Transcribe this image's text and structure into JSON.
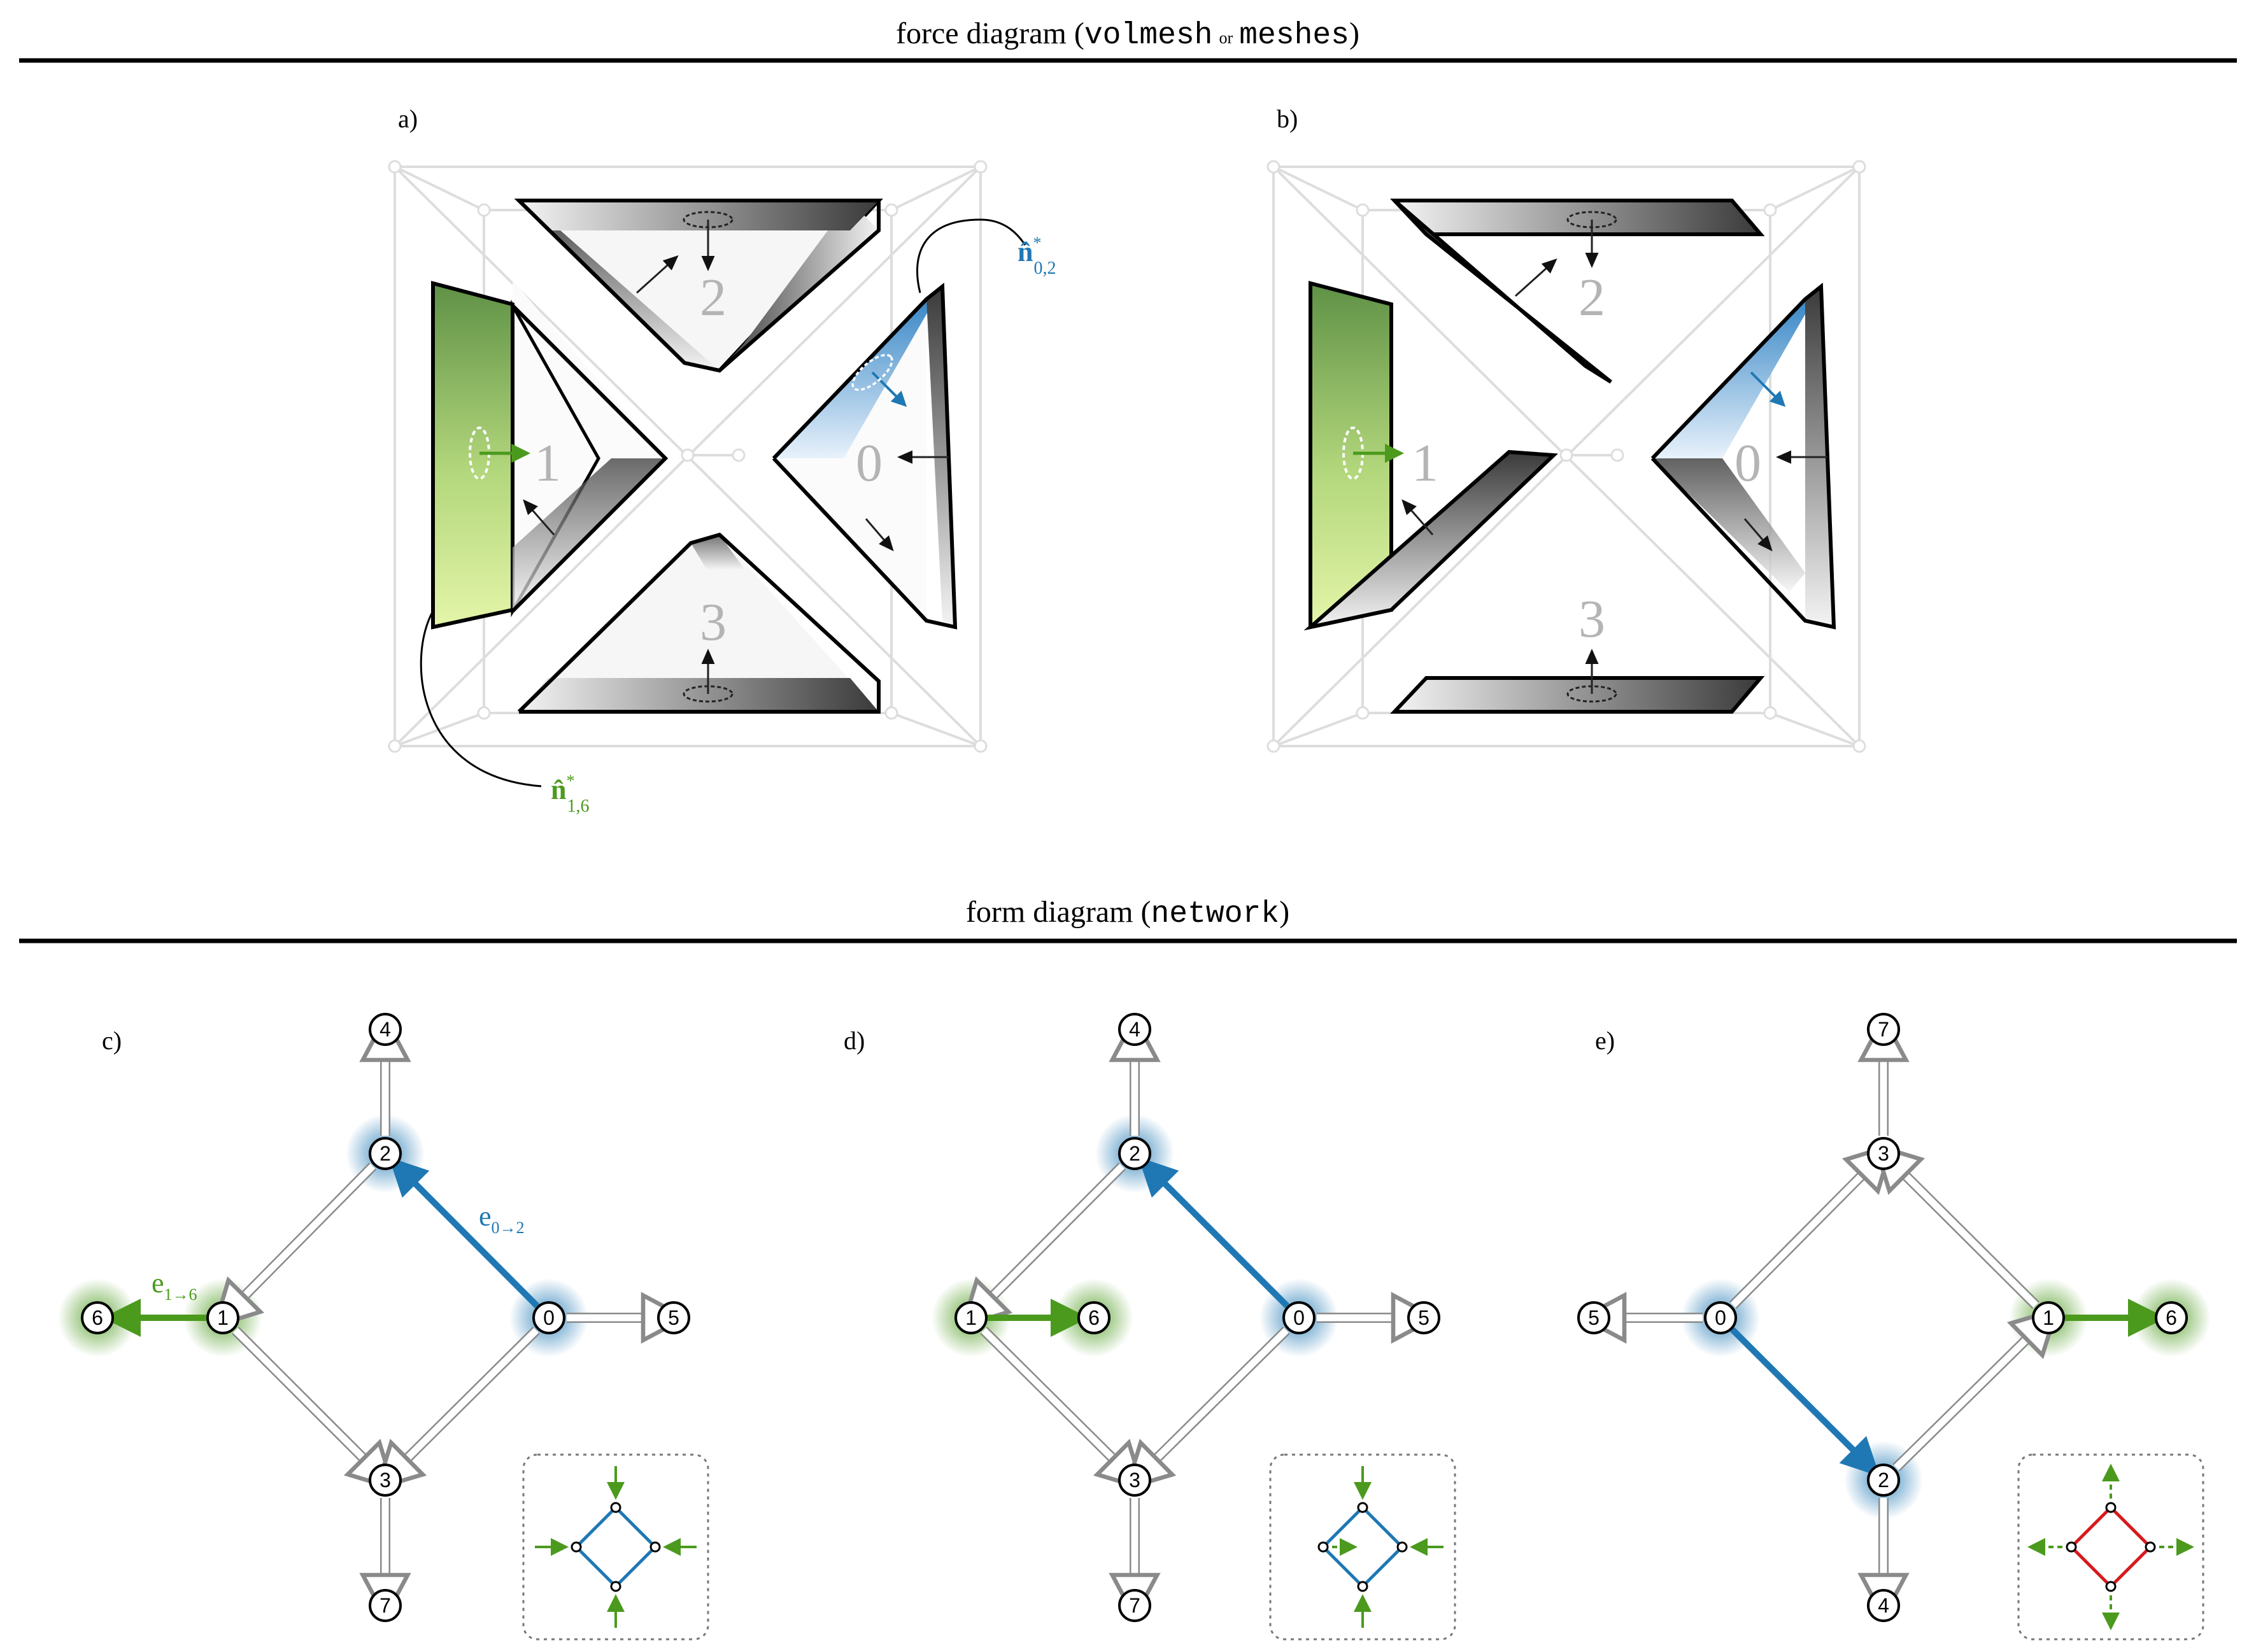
{
  "headings": {
    "force": {
      "prefix": "force diagram (",
      "code1": "volmesh",
      "or": "or",
      "code2": "meshes",
      "suffix": ")"
    },
    "form": {
      "prefix": "form diagram (",
      "code": "network",
      "suffix": ")"
    }
  },
  "panels": {
    "a": "a)",
    "b": "b)",
    "c": "c)",
    "d": "d)",
    "e": "e)"
  },
  "force_cells": [
    "0",
    "1",
    "2",
    "3"
  ],
  "annotations": {
    "n02": {
      "main": "n̂",
      "sup": "*",
      "sub": "0,2",
      "color": "#1f78b4"
    },
    "n16": {
      "main": "n̂",
      "sup": "*",
      "sub": "1,6",
      "color": "#4b9a1d"
    },
    "e02": {
      "main": "e",
      "sub": "0→2",
      "color": "#1f78b4"
    },
    "e16": {
      "main": "e",
      "sub": "1→6",
      "color": "#4b9a1d"
    }
  },
  "form_nodes": {
    "c": [
      "0",
      "1",
      "2",
      "3",
      "4",
      "5",
      "6",
      "7"
    ],
    "d": [
      "0",
      "1",
      "2",
      "3",
      "4",
      "5",
      "6",
      "7"
    ],
    "e": [
      "0",
      "1",
      "2",
      "3",
      "4",
      "5",
      "6",
      "7"
    ]
  },
  "colors": {
    "blue": "#1f78b4",
    "green": "#4b9a1d",
    "red": "#d7191c",
    "grey_edge": "#cccccc",
    "dark": "#000000"
  }
}
